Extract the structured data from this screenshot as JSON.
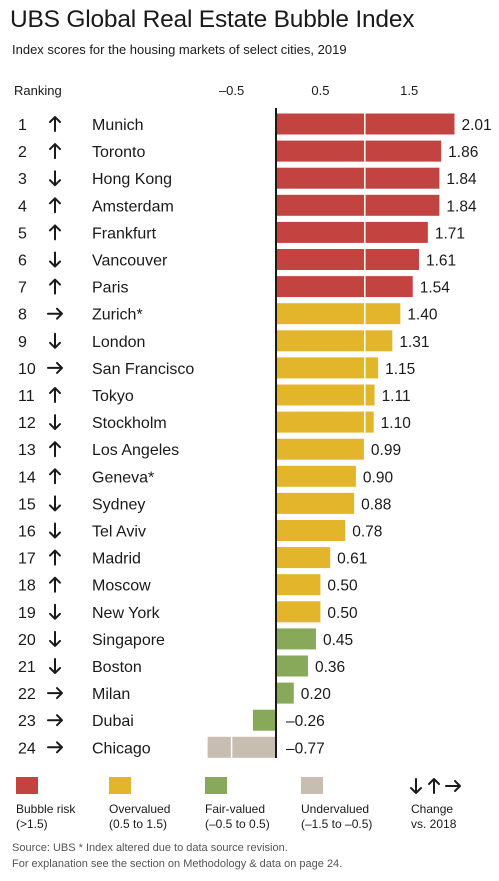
{
  "title": "UBS Global Real Estate Bubble Index",
  "subtitle": "Index scores for the housing markets of select cities, 2019",
  "ranking_label": "Ranking",
  "colors": {
    "bubble": "#c2433f",
    "overvalued": "#e3b52a",
    "fair": "#88a85a",
    "undervalued": "#c7bdb0",
    "axis": "#1a1a1a"
  },
  "chart_data": {
    "type": "bar",
    "orientation": "horizontal",
    "title": "UBS Global Real Estate Bubble Index",
    "subtitle": "Index scores for the housing markets of select cities, 2019",
    "axis_ticks": [
      "–0.5",
      "0.5",
      "1.5"
    ],
    "tick_values": [
      -0.5,
      0.5,
      1.5
    ],
    "xlim": [
      -1.5,
      2.25
    ],
    "rows": [
      {
        "rank": "1",
        "change": "up",
        "city": "Munich",
        "value": 2.01,
        "label": "2.01",
        "category": "bubble"
      },
      {
        "rank": "2",
        "change": "up",
        "city": "Toronto",
        "value": 1.86,
        "label": "1.86",
        "category": "bubble"
      },
      {
        "rank": "3",
        "change": "down",
        "city": "Hong Kong",
        "value": 1.84,
        "label": "1.84",
        "category": "bubble"
      },
      {
        "rank": "4",
        "change": "up",
        "city": "Amsterdam",
        "value": 1.84,
        "label": "1.84",
        "category": "bubble"
      },
      {
        "rank": "5",
        "change": "up",
        "city": "Frankfurt",
        "value": 1.71,
        "label": "1.71",
        "category": "bubble"
      },
      {
        "rank": "6",
        "change": "down",
        "city": "Vancouver",
        "value": 1.61,
        "label": "1.61",
        "category": "bubble"
      },
      {
        "rank": "7",
        "change": "up",
        "city": "Paris",
        "value": 1.54,
        "label": "1.54",
        "category": "bubble"
      },
      {
        "rank": "8",
        "change": "right",
        "city": "Zurich*",
        "value": 1.4,
        "label": "1.40",
        "category": "overvalued"
      },
      {
        "rank": "9",
        "change": "down",
        "city": "London",
        "value": 1.31,
        "label": "1.31",
        "category": "overvalued"
      },
      {
        "rank": "10",
        "change": "right",
        "city": "San Francisco",
        "value": 1.15,
        "label": "1.15",
        "category": "overvalued"
      },
      {
        "rank": "11",
        "change": "up",
        "city": "Tokyo",
        "value": 1.11,
        "label": "1.11",
        "category": "overvalued"
      },
      {
        "rank": "12",
        "change": "down",
        "city": "Stockholm",
        "value": 1.1,
        "label": "1.10",
        "category": "overvalued"
      },
      {
        "rank": "13",
        "change": "up",
        "city": "Los Angeles",
        "value": 0.99,
        "label": "0.99",
        "category": "overvalued"
      },
      {
        "rank": "14",
        "change": "up",
        "city": "Geneva*",
        "value": 0.9,
        "label": "0.90",
        "category": "overvalued"
      },
      {
        "rank": "15",
        "change": "down",
        "city": "Sydney",
        "value": 0.88,
        "label": "0.88",
        "category": "overvalued"
      },
      {
        "rank": "16",
        "change": "down",
        "city": "Tel Aviv",
        "value": 0.78,
        "label": "0.78",
        "category": "overvalued"
      },
      {
        "rank": "17",
        "change": "up",
        "city": "Madrid",
        "value": 0.61,
        "label": "0.61",
        "category": "overvalued"
      },
      {
        "rank": "18",
        "change": "up",
        "city": "Moscow",
        "value": 0.5,
        "label": "0.50",
        "category": "overvalued"
      },
      {
        "rank": "19",
        "change": "down",
        "city": "New York",
        "value": 0.5,
        "label": "0.50",
        "category": "overvalued"
      },
      {
        "rank": "20",
        "change": "down",
        "city": "Singapore",
        "value": 0.45,
        "label": "0.45",
        "category": "fair"
      },
      {
        "rank": "21",
        "change": "down",
        "city": "Boston",
        "value": 0.36,
        "label": "0.36",
        "category": "fair"
      },
      {
        "rank": "22",
        "change": "right",
        "city": "Milan",
        "value": 0.2,
        "label": "0.20",
        "category": "fair"
      },
      {
        "rank": "23",
        "change": "right",
        "city": "Dubai",
        "value": -0.26,
        "label": "–0.26",
        "category": "fair"
      },
      {
        "rank": "24",
        "change": "right",
        "city": "Chicago",
        "value": -0.77,
        "label": "–0.77",
        "category": "undervalued"
      }
    ],
    "legend_position": "bottom",
    "legend": [
      {
        "key": "bubble",
        "label": "Bubble risk",
        "range": "(>1.5)"
      },
      {
        "key": "overvalued",
        "label": "Overvalued",
        "range": "(0.5 to 1.5)"
      },
      {
        "key": "fair",
        "label": "Fair-valued",
        "range": "(–0.5 to 0.5)"
      },
      {
        "key": "undervalued",
        "label": "Undervalued",
        "range": "(–1.5 to –0.5)"
      }
    ],
    "change_legend": {
      "icon": "arrows-icon",
      "label1": "Change",
      "label2": "vs. 2018"
    }
  },
  "footer": {
    "line1": "Source: UBS  * Index altered due to data source revision.",
    "line2": "For explanation see the section on Methodology & data on page 24."
  }
}
